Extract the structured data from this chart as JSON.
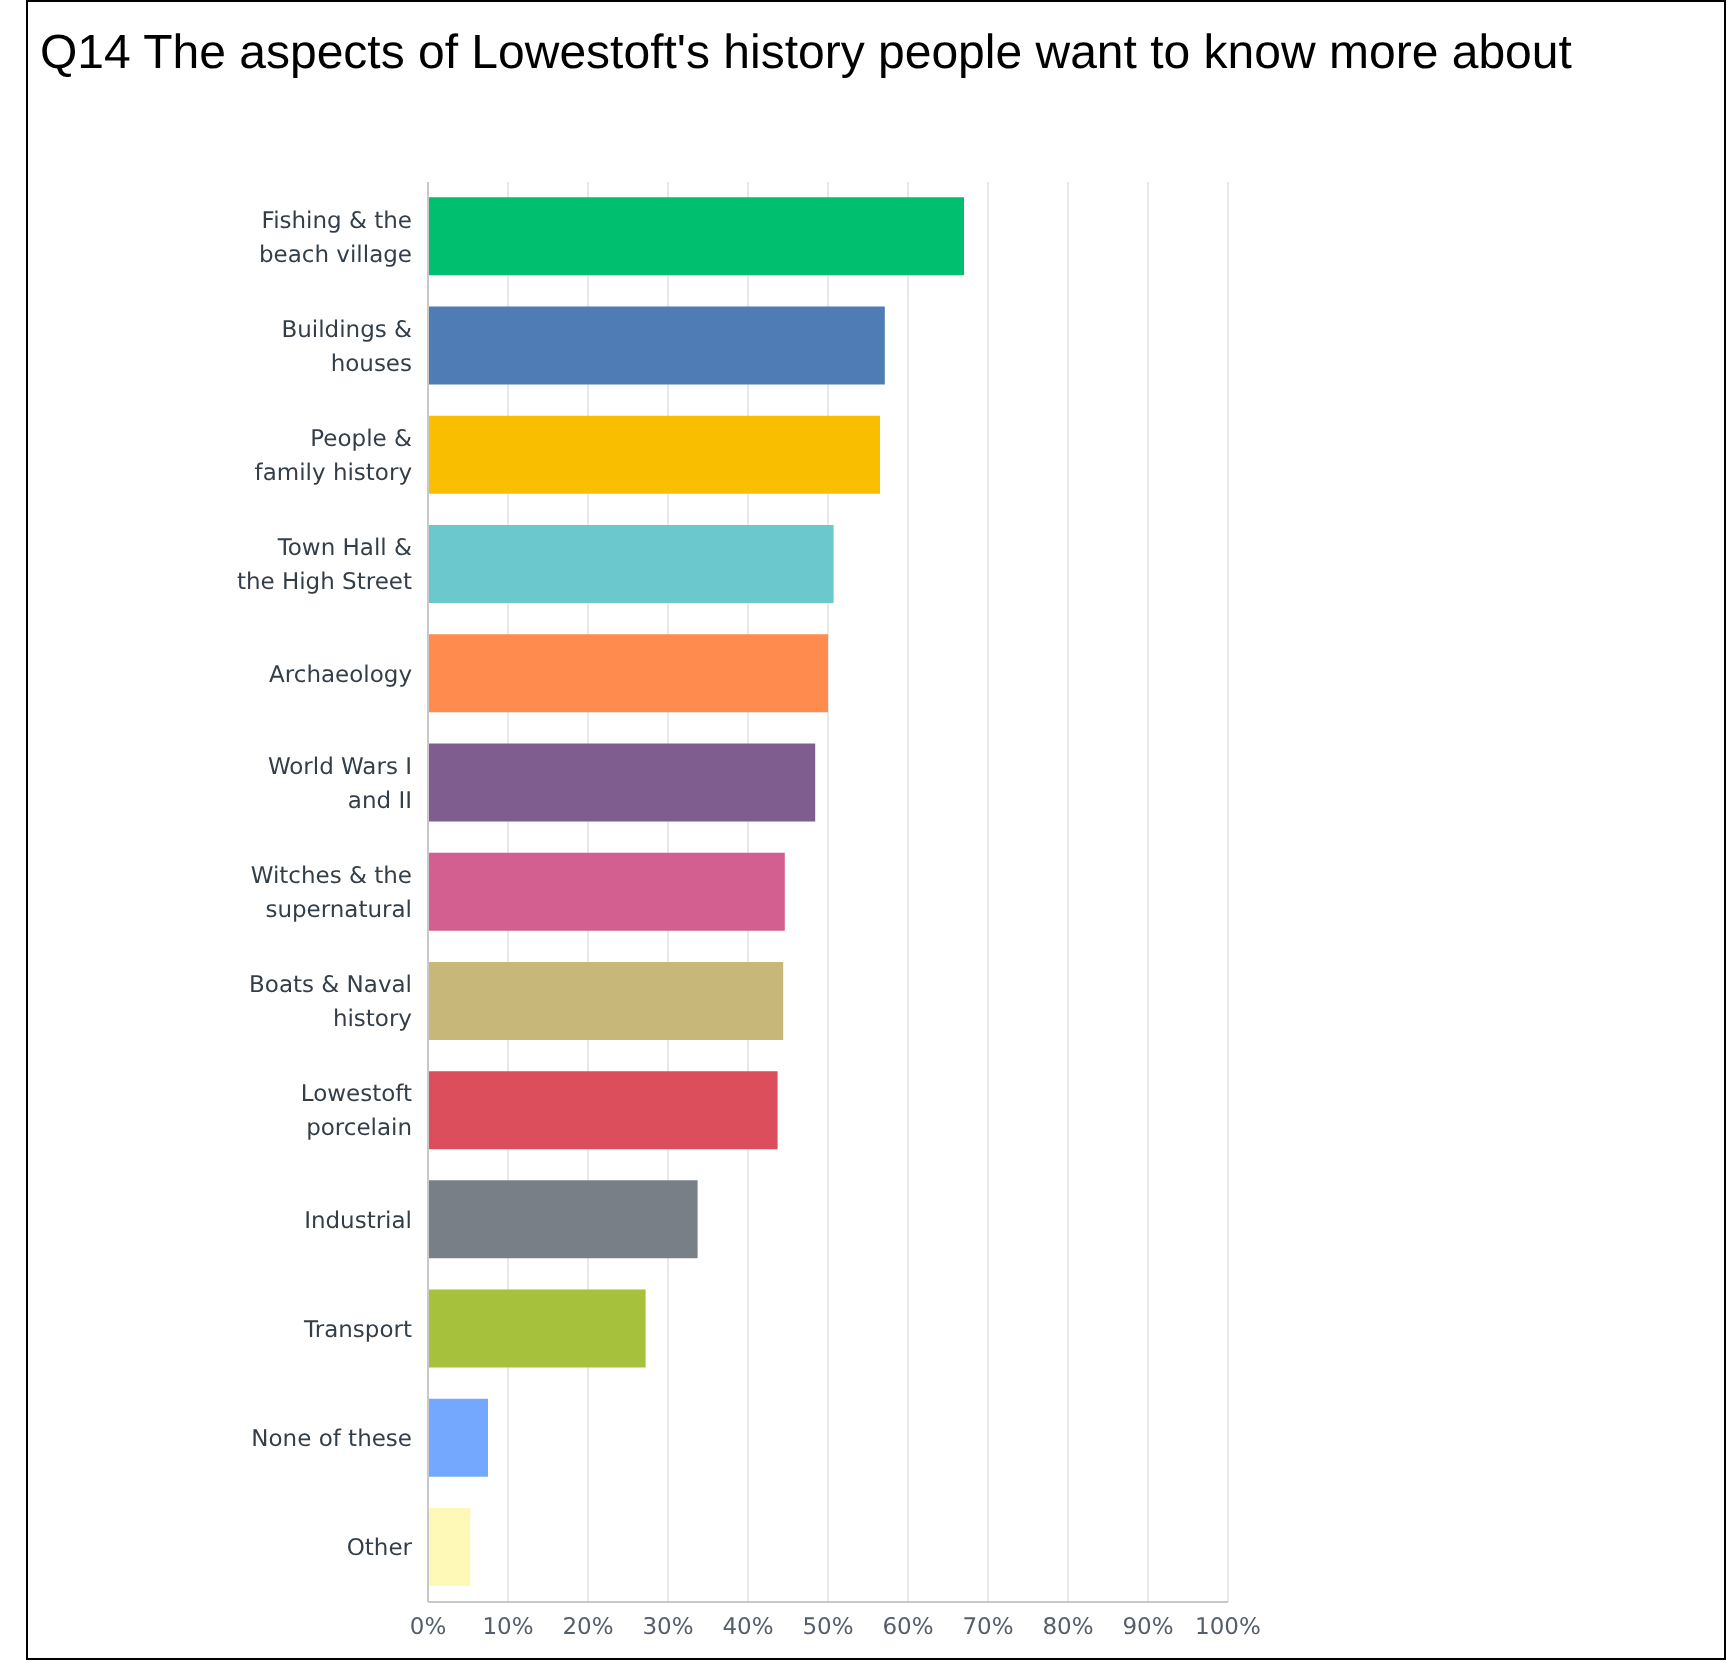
{
  "chart_data": {
    "type": "bar",
    "orientation": "horizontal",
    "title": "Q14 The aspects of Lowestoft's history people want to know more about",
    "categories": [
      "Fishing & the\nbeach village",
      "Buildings &\nhouses",
      "People &\nfamily history",
      "Town Hall &\nthe High Street",
      "Archaeology",
      "World Wars I\nand II",
      "Witches & the\nsupernatural",
      "Boats & Naval\nhistory",
      "Lowestoft\nporcelain",
      "Industrial",
      "Transport",
      "None of these",
      "Other"
    ],
    "values": [
      67.0,
      57.1,
      56.5,
      50.7,
      50.0,
      48.4,
      44.6,
      44.4,
      43.7,
      33.7,
      27.2,
      7.5,
      5.3
    ],
    "colors": [
      "#00bf6f",
      "#507cb6",
      "#f9be00",
      "#6bc8cd",
      "#ff8b4f",
      "#7f5e8f",
      "#d25f90",
      "#c7b879",
      "#dc4e5c",
      "#787f87",
      "#a6c13c",
      "#74a8ff",
      "#fff9b8"
    ],
    "xlim": [
      0,
      100
    ],
    "xticks": [
      {
        "value": 0,
        "label": "0%"
      },
      {
        "value": 10,
        "label": "10%"
      },
      {
        "value": 20,
        "label": "20%"
      },
      {
        "value": 30,
        "label": "30%"
      },
      {
        "value": 40,
        "label": "40%"
      },
      {
        "value": 50,
        "label": "50%"
      },
      {
        "value": 60,
        "label": "60%"
      },
      {
        "value": 70,
        "label": "70%"
      },
      {
        "value": 80,
        "label": "80%"
      },
      {
        "value": 90,
        "label": "90%"
      },
      {
        "value": 100,
        "label": "100%"
      }
    ],
    "grid": "x"
  }
}
